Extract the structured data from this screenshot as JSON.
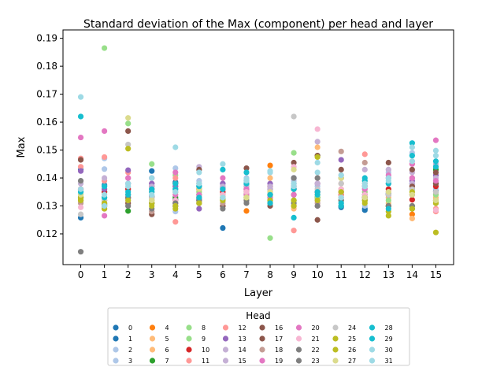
{
  "chart_data": {
    "type": "scatter",
    "title": "Standard deviation of the Max (component) per head and layer",
    "xlabel": "Layer",
    "ylabel": "Max",
    "xlim": [
      -0.75,
      15.75
    ],
    "ylim": [
      0.109,
      0.193
    ],
    "x_ticks": [
      0,
      1,
      2,
      3,
      4,
      5,
      6,
      7,
      8,
      9,
      10,
      11,
      12,
      13,
      14,
      15
    ],
    "y_ticks": [
      0.12,
      0.13,
      0.14,
      0.15,
      0.16,
      0.17,
      0.18,
      0.19
    ],
    "grid": false,
    "legend": {
      "title": "Head",
      "placement": "bottom-center",
      "columns": 8
    },
    "series": [
      {
        "name": "0",
        "color": "#1f77b4",
        "values": [
          0.1258,
          0.1305,
          0.1328,
          0.1335,
          0.1322,
          0.1325,
          0.1221,
          0.133,
          0.134,
          0.136,
          0.135,
          0.13,
          0.129,
          0.1345,
          0.136,
          0.1355
        ]
      },
      {
        "name": "1",
        "color": "#1f77b4",
        "values": [
          0.143,
          0.1375,
          0.138,
          0.1425,
          0.1385,
          0.137,
          0.1365,
          0.1375,
          0.136,
          0.14,
          0.133,
          0.1295,
          0.1285,
          0.134,
          0.138,
          0.138
        ]
      },
      {
        "name": "2",
        "color": "#aec7e8",
        "values": [
          0.135,
          0.1432,
          0.136,
          0.14,
          0.1435,
          0.139,
          0.138,
          0.14,
          0.142,
          0.139,
          0.137,
          0.133,
          0.13,
          0.143,
          0.149,
          0.139
        ]
      },
      {
        "name": "3",
        "color": "#aec7e8",
        "values": [
          0.132,
          0.147,
          0.133,
          0.133,
          0.128,
          0.132,
          0.1345,
          0.1345,
          0.133,
          0.138,
          0.135,
          0.131,
          0.136,
          0.142,
          0.138,
          0.136
        ]
      },
      {
        "name": "4",
        "color": "#ff7f0e",
        "values": [
          0.132,
          0.13,
          0.133,
          0.132,
          0.131,
          0.132,
          0.133,
          0.1282,
          0.1445,
          0.13,
          0.133,
          0.134,
          0.133,
          0.13,
          0.127,
          0.132
        ]
      },
      {
        "name": "5",
        "color": "#ffbb78",
        "values": [
          0.134,
          0.132,
          0.134,
          0.136,
          0.137,
          0.135,
          0.134,
          0.136,
          0.14,
          0.13,
          0.151,
          0.14,
          0.138,
          0.131,
          0.1255,
          0.133
        ]
      },
      {
        "name": "6",
        "color": "#ffbb78",
        "values": [
          0.136,
          0.133,
          0.131,
          0.133,
          0.135,
          0.136,
          0.132,
          0.132,
          0.137,
          0.129,
          0.134,
          0.136,
          0.135,
          0.133,
          0.13,
          0.134
        ]
      },
      {
        "name": "7",
        "color": "#2ca02c",
        "values": [
          0.133,
          0.135,
          0.1282,
          0.131,
          0.133,
          0.134,
          0.133,
          0.135,
          0.134,
          0.132,
          0.133,
          0.132,
          0.133,
          0.13,
          0.129,
          0.143
        ]
      },
      {
        "name": "8",
        "color": "#98df8a",
        "values": [
          0.133,
          0.1865,
          0.1595,
          0.145,
          0.141,
          0.135,
          0.134,
          0.137,
          0.1185,
          0.149,
          0.148,
          0.14,
          0.132,
          0.13,
          0.13,
          0.134
        ]
      },
      {
        "name": "9",
        "color": "#98df8a",
        "values": [
          0.134,
          0.135,
          0.134,
          0.132,
          0.13,
          0.132,
          0.132,
          0.135,
          0.136,
          0.132,
          0.133,
          0.134,
          0.135,
          0.132,
          0.13,
          0.132
        ]
      },
      {
        "name": "10",
        "color": "#d62728",
        "values": [
          0.136,
          0.135,
          0.136,
          0.137,
          0.138,
          0.136,
          0.135,
          0.136,
          0.137,
          0.136,
          0.135,
          0.134,
          0.137,
          0.136,
          0.1322,
          0.137
        ]
      },
      {
        "name": "11",
        "color": "#ff9896",
        "values": [
          0.147,
          0.139,
          0.14,
          0.138,
          0.1243,
          0.133,
          0.134,
          0.135,
          0.136,
          0.1212,
          0.138,
          0.134,
          0.1485,
          0.134,
          0.134,
          0.128
        ]
      },
      {
        "name": "12",
        "color": "#ff9896",
        "values": [
          0.144,
          0.1475,
          0.142,
          0.135,
          0.14,
          0.138,
          0.137,
          0.135,
          0.137,
          0.137,
          0.14,
          0.138,
          0.139,
          0.138,
          0.145,
          0.129
        ]
      },
      {
        "name": "13",
        "color": "#9467bd",
        "values": [
          0.1425,
          0.136,
          0.1428,
          0.138,
          0.137,
          0.129,
          0.138,
          0.139,
          0.138,
          0.14,
          0.138,
          0.1465,
          0.137,
          0.14,
          0.139,
          0.141
        ]
      },
      {
        "name": "14",
        "color": "#c5b0d5",
        "values": [
          0.138,
          0.14,
          0.14,
          0.137,
          0.136,
          0.138,
          0.136,
          0.137,
          0.136,
          0.138,
          0.138,
          0.14,
          0.138,
          0.143,
          0.142,
          0.145
        ]
      },
      {
        "name": "15",
        "color": "#c5b0d5",
        "values": [
          0.135,
          0.137,
          0.138,
          0.136,
          0.135,
          0.144,
          0.137,
          0.138,
          0.137,
          0.136,
          0.153,
          0.141,
          0.143,
          0.138,
          0.138,
          0.14
        ]
      },
      {
        "name": "16",
        "color": "#8c564b",
        "values": [
          0.1465,
          0.129,
          0.1568,
          0.127,
          0.13,
          0.143,
          0.13,
          0.1435,
          0.13,
          0.1455,
          0.125,
          0.143,
          0.133,
          0.1455,
          0.143,
          0.138
        ]
      },
      {
        "name": "17",
        "color": "#8c564b",
        "values": [
          0.133,
          0.13,
          0.131,
          0.131,
          0.132,
          0.132,
          0.13,
          0.134,
          0.131,
          0.134,
          0.148,
          0.135,
          0.134,
          0.13,
          0.137,
          0.142
        ]
      },
      {
        "name": "18",
        "color": "#c49c94",
        "values": [
          0.131,
          0.132,
          0.13,
          0.128,
          0.131,
          0.133,
          0.131,
          0.134,
          0.133,
          0.13,
          0.131,
          0.1495,
          0.1455,
          0.135,
          0.14,
          0.132
        ]
      },
      {
        "name": "19",
        "color": "#e377c2",
        "values": [
          0.1545,
          0.1568,
          0.14,
          0.14,
          0.142,
          0.134,
          0.14,
          0.136,
          0.135,
          0.134,
          0.13,
          0.135,
          0.136,
          0.141,
          0.145,
          0.1535
        ]
      },
      {
        "name": "20",
        "color": "#e377c2",
        "values": [
          0.136,
          0.1265,
          0.134,
          0.136,
          0.134,
          0.132,
          0.136,
          0.134,
          0.133,
          0.137,
          0.132,
          0.133,
          0.133,
          0.134,
          0.14,
          0.139
        ]
      },
      {
        "name": "21",
        "color": "#f7b6d2",
        "values": [
          0.1295,
          0.131,
          0.132,
          0.133,
          0.132,
          0.133,
          0.134,
          0.135,
          0.134,
          0.144,
          0.1575,
          0.136,
          0.134,
          0.135,
          0.146,
          0.1285
        ]
      },
      {
        "name": "22",
        "color": "#7f7f7f",
        "values": [
          0.139,
          0.131,
          0.133,
          0.133,
          0.131,
          0.132,
          0.1325,
          0.132,
          0.134,
          0.14,
          0.14,
          0.132,
          0.133,
          0.134,
          0.134,
          0.135
        ]
      },
      {
        "name": "23",
        "color": "#7f7f7f",
        "values": [
          0.1136,
          0.13,
          0.13,
          0.129,
          0.13,
          0.131,
          0.129,
          0.131,
          0.132,
          0.131,
          0.13,
          0.13,
          0.132,
          0.13,
          0.13,
          0.131
        ]
      },
      {
        "name": "24",
        "color": "#c7c7c7",
        "values": [
          0.127,
          0.132,
          0.152,
          0.133,
          0.13,
          0.131,
          0.132,
          0.133,
          0.134,
          0.162,
          0.136,
          0.138,
          0.137,
          0.134,
          0.136,
          0.135
        ]
      },
      {
        "name": "25",
        "color": "#bcbd22",
        "values": [
          0.132,
          0.131,
          0.1505,
          0.13,
          0.129,
          0.131,
          0.132,
          0.133,
          0.134,
          0.13,
          0.1475,
          0.14,
          0.132,
          0.1265,
          0.135,
          0.1205
        ]
      },
      {
        "name": "26",
        "color": "#bcbd22",
        "values": [
          0.133,
          0.129,
          0.132,
          0.131,
          0.13,
          0.131,
          0.132,
          0.133,
          0.132,
          0.132,
          0.132,
          0.135,
          0.131,
          0.128,
          0.129,
          0.131
        ]
      },
      {
        "name": "27",
        "color": "#dbdb8d",
        "values": [
          0.134,
          0.133,
          0.1615,
          0.132,
          0.135,
          0.136,
          0.133,
          0.133,
          0.135,
          0.143,
          0.134,
          0.14,
          0.133,
          0.135,
          0.134,
          0.132
        ]
      },
      {
        "name": "28",
        "color": "#17becf",
        "values": [
          0.162,
          0.137,
          0.135,
          0.136,
          0.138,
          0.133,
          0.143,
          0.142,
          0.131,
          0.1258,
          0.134,
          0.13,
          0.14,
          0.129,
          0.1525,
          0.144
        ]
      },
      {
        "name": "29",
        "color": "#17becf",
        "values": [
          0.135,
          0.133,
          0.134,
          0.135,
          0.136,
          0.137,
          0.136,
          0.138,
          0.134,
          0.136,
          0.135,
          0.131,
          0.139,
          0.138,
          0.148,
          0.146
        ]
      },
      {
        "name": "30",
        "color": "#9edae5",
        "values": [
          0.169,
          0.13,
          0.138,
          0.14,
          0.151,
          0.142,
          0.145,
          0.1395,
          0.1425,
          0.138,
          0.1455,
          0.141,
          0.137,
          0.139,
          0.151,
          0.1498
        ]
      },
      {
        "name": "31",
        "color": "#9edae5",
        "values": [
          0.136,
          0.134,
          0.137,
          0.134,
          0.135,
          0.138,
          0.133,
          0.139,
          0.142,
          0.137,
          0.142,
          0.133,
          0.138,
          0.14,
          0.146,
          0.148
        ]
      }
    ]
  }
}
